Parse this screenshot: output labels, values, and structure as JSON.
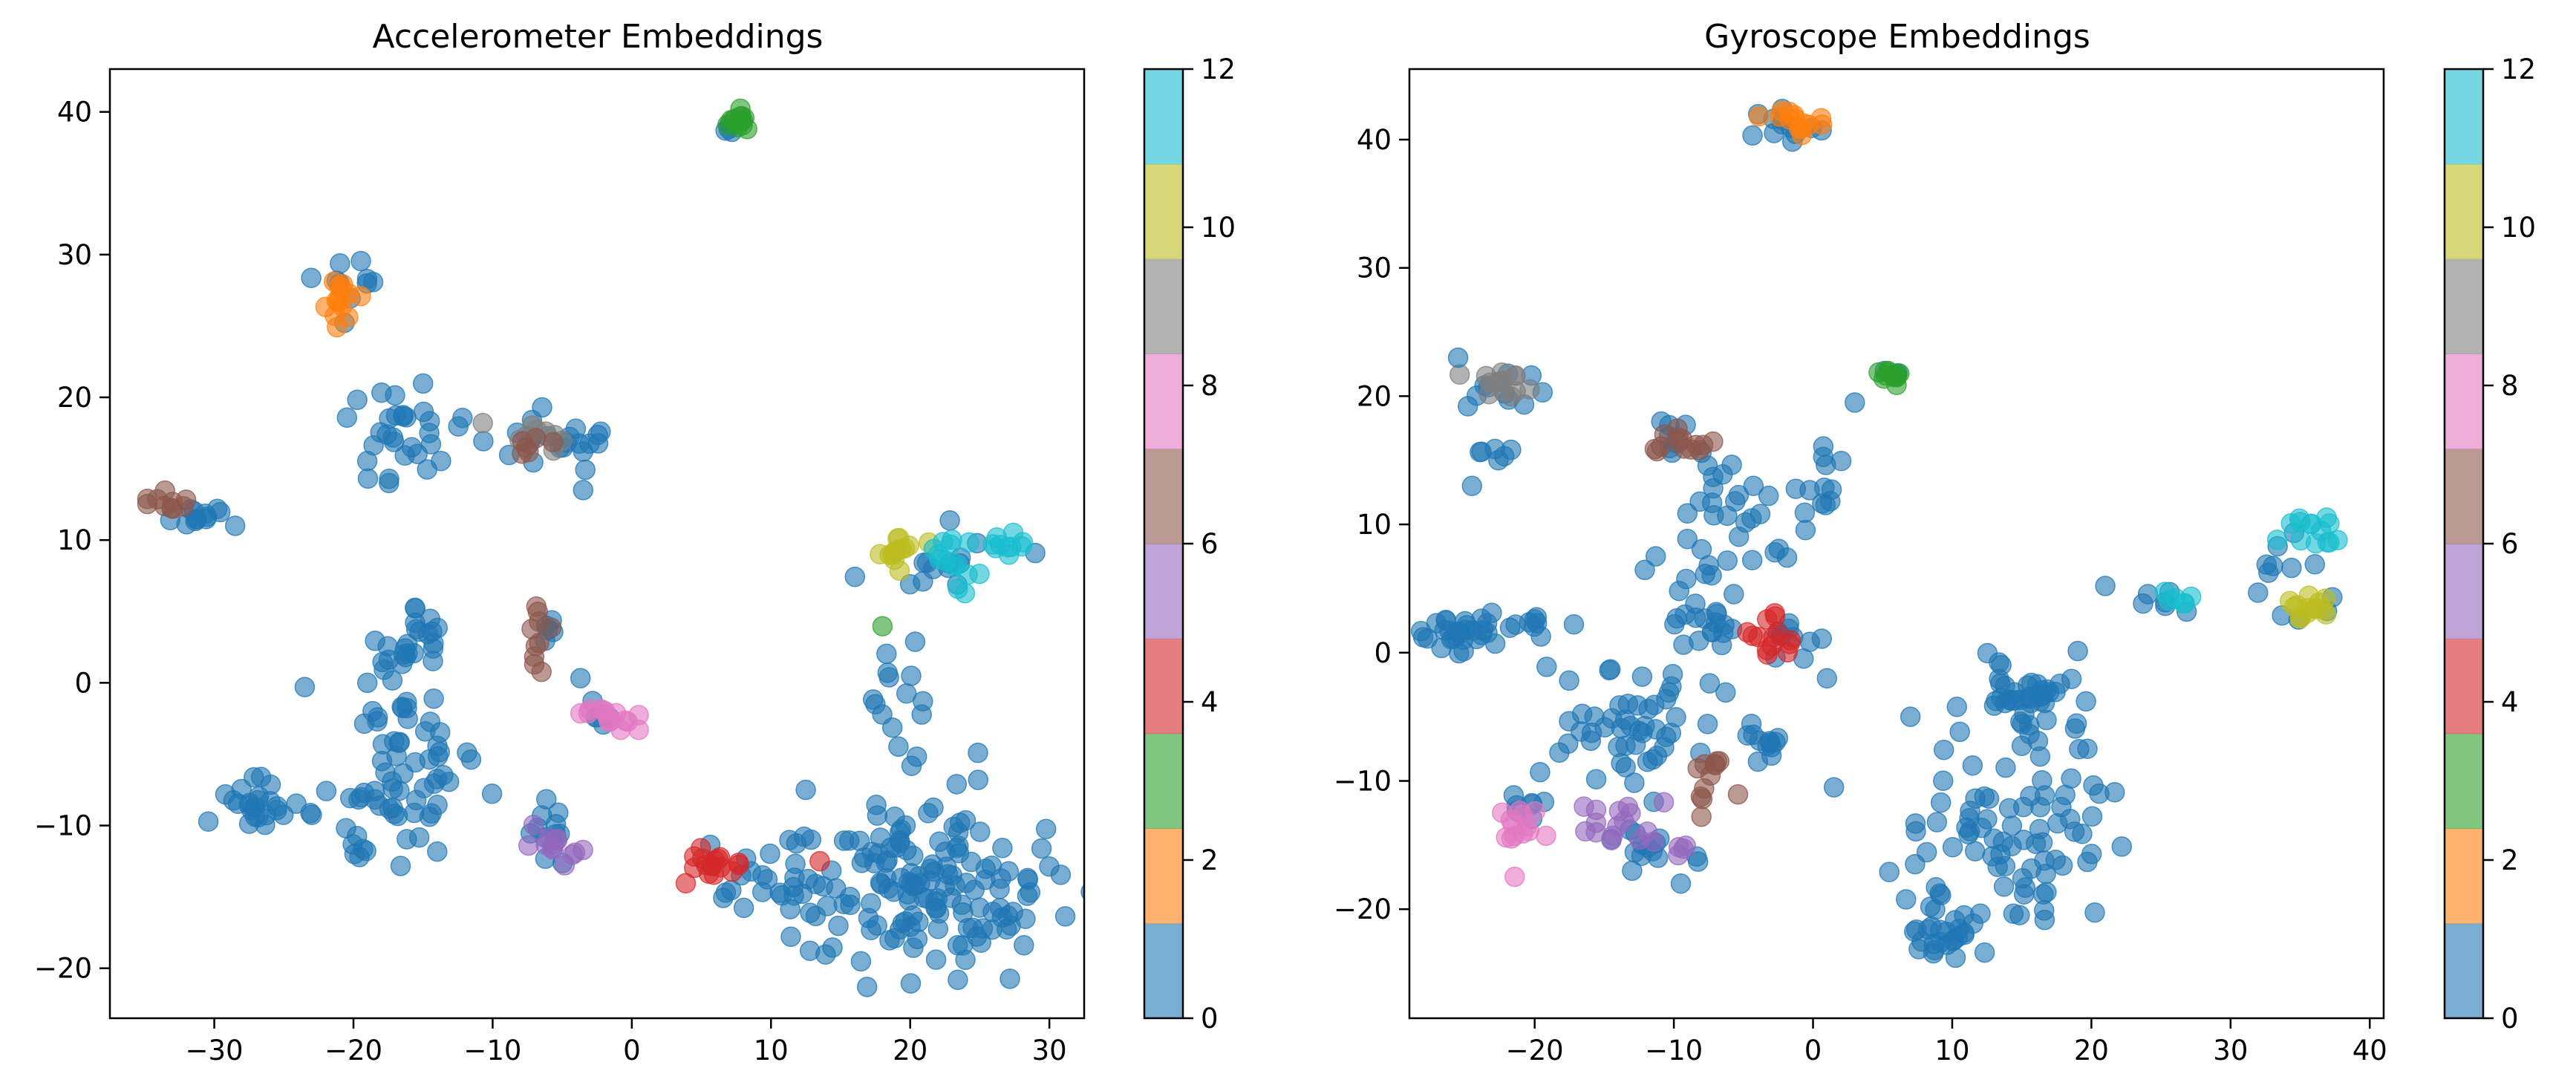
{
  "chart_data": [
    {
      "type": "scatter",
      "title": "Accelerometer Embeddings",
      "xlabel": "",
      "ylabel": "",
      "xlim": [
        -37.5,
        32.5
      ],
      "ylim": [
        -23.5,
        43
      ],
      "xticks": [
        "−30",
        "−20",
        "−10",
        "0",
        "10",
        "20",
        "30"
      ],
      "yticks": [
        "−20",
        "−10",
        "0",
        "10",
        "20",
        "30",
        "40"
      ],
      "grid": false,
      "colorbar": {
        "min": 0,
        "max": 12,
        "ticks": [
          "0",
          "2",
          "4",
          "6",
          "8",
          "10",
          "12"
        ],
        "colors": [
          "#1f77b4",
          "#ff7f0e",
          "#2ca02c",
          "#d62728",
          "#9467bd",
          "#8c564b",
          "#e377c2",
          "#7f7f7f",
          "#bcbd22",
          "#17becf"
        ]
      },
      "clusters": [
        {
          "label": 2,
          "color": "#2ca02c",
          "cx": 7.7,
          "cy": 39.2,
          "sx": 0.5,
          "sy": 0.4,
          "n": 14
        },
        {
          "label": 0,
          "color": "#1f77b4",
          "cx": 7.0,
          "cy": 38.6,
          "sx": 0.4,
          "sy": 0.4,
          "n": 4
        },
        {
          "label": 1,
          "color": "#ff7f0e",
          "cx": -21.0,
          "cy": 27.0,
          "sx": 0.8,
          "sy": 1.1,
          "n": 14
        },
        {
          "label": 0,
          "color": "#1f77b4",
          "cx": -20.5,
          "cy": 27.5,
          "sx": 1.7,
          "sy": 1.4,
          "n": 10
        },
        {
          "label": 5,
          "color": "#8c564b",
          "cx": -33.0,
          "cy": 12.4,
          "sx": 0.9,
          "sy": 0.5,
          "n": 10
        },
        {
          "label": 0,
          "color": "#1f77b4",
          "cx": -31.5,
          "cy": 11.4,
          "sx": 1.7,
          "sy": 0.4,
          "n": 12
        },
        {
          "label": 0,
          "color": "#1f77b4",
          "cx": -16.5,
          "cy": 17.0,
          "sx": 2.0,
          "sy": 1.8,
          "n": 30
        },
        {
          "label": 7,
          "color": "#7f7f7f",
          "cx": -7.0,
          "cy": 17.0,
          "sx": 1.2,
          "sy": 0.7,
          "n": 10
        },
        {
          "label": 5,
          "color": "#8c564b",
          "cx": -7.5,
          "cy": 16.8,
          "sx": 0.8,
          "sy": 0.5,
          "n": 6
        },
        {
          "label": 0,
          "color": "#1f77b4",
          "cx": -6.5,
          "cy": 16.8,
          "sx": 2.0,
          "sy": 1.3,
          "n": 20
        },
        {
          "label": 8,
          "color": "#bcbd22",
          "cx": 19.5,
          "cy": 9.0,
          "sx": 0.8,
          "sy": 0.8,
          "n": 14
        },
        {
          "label": 9,
          "color": "#17becf",
          "cx": 23.5,
          "cy": 8.5,
          "sx": 1.5,
          "sy": 1.2,
          "n": 14
        },
        {
          "label": 9,
          "color": "#17becf",
          "cx": 27.0,
          "cy": 9.6,
          "sx": 0.9,
          "sy": 0.5,
          "n": 10
        },
        {
          "label": 0,
          "color": "#1f77b4",
          "cx": 23.0,
          "cy": 8.0,
          "sx": 3.0,
          "sy": 1.4,
          "n": 14
        },
        {
          "label": 0,
          "color": "#1f77b4",
          "cx": 19.0,
          "cy": 0.5,
          "sx": 1.2,
          "sy": 2.5,
          "n": 12
        },
        {
          "label": 2,
          "color": "#2ca02c",
          "cx": 18.0,
          "cy": 4.0,
          "sx": 0.1,
          "sy": 0.1,
          "n": 1
        },
        {
          "label": 5,
          "color": "#8c564b",
          "cx": -6.5,
          "cy": 3.0,
          "sx": 0.5,
          "sy": 1.4,
          "n": 10
        },
        {
          "label": 0,
          "color": "#1f77b4",
          "cx": -6.0,
          "cy": 3.0,
          "sx": 0.8,
          "sy": 1.4,
          "n": 6
        },
        {
          "label": 6,
          "color": "#e377c2",
          "cx": -1.8,
          "cy": -2.2,
          "sx": 0.9,
          "sy": 0.6,
          "n": 14
        },
        {
          "label": 0,
          "color": "#1f77b4",
          "cx": -2.2,
          "cy": -2.0,
          "sx": 0.9,
          "sy": 0.6,
          "n": 6
        },
        {
          "label": 0,
          "color": "#1f77b4",
          "cx": -16.0,
          "cy": 3.0,
          "sx": 1.4,
          "sy": 1.6,
          "n": 25
        },
        {
          "label": 0,
          "color": "#1f77b4",
          "cx": -16.5,
          "cy": -6.5,
          "sx": 2.5,
          "sy": 2.5,
          "n": 60
        },
        {
          "label": 0,
          "color": "#1f77b4",
          "cx": -27.0,
          "cy": -8.5,
          "sx": 1.5,
          "sy": 1.0,
          "n": 25
        },
        {
          "label": 0,
          "color": "#1f77b4",
          "cx": -19.5,
          "cy": -11.5,
          "sx": 0.5,
          "sy": 0.5,
          "n": 6
        },
        {
          "label": 4,
          "color": "#9467bd",
          "cx": -5.5,
          "cy": -12.0,
          "sx": 0.7,
          "sy": 1.0,
          "n": 12
        },
        {
          "label": 0,
          "color": "#1f77b4",
          "cx": -6.0,
          "cy": -10.5,
          "sx": 0.8,
          "sy": 1.4,
          "n": 12
        },
        {
          "label": 3,
          "color": "#d62728",
          "cx": 6.0,
          "cy": -13.0,
          "sx": 1.3,
          "sy": 1.0,
          "n": 16
        },
        {
          "label": 0,
          "color": "#1f77b4",
          "cx": 21.0,
          "cy": -14.0,
          "sx": 4.5,
          "sy": 3.0,
          "n": 150
        },
        {
          "label": 0,
          "color": "#1f77b4",
          "cx": 9.5,
          "cy": -13.5,
          "sx": 2.5,
          "sy": 1.5,
          "n": 25
        }
      ],
      "singles": [
        {
          "label": 0,
          "color": "#1f77b4",
          "x": -23.5,
          "y": -0.3
        },
        {
          "label": 0,
          "color": "#1f77b4",
          "x": -19.0,
          "y": 0.0
        },
        {
          "label": 0,
          "color": "#1f77b4",
          "x": -28.5,
          "y": 11.0
        },
        {
          "label": 0,
          "color": "#1f77b4",
          "x": -3.5,
          "y": 13.5
        },
        {
          "label": 0,
          "color": "#1f77b4",
          "x": -3.5,
          "y": 16.2
        },
        {
          "label": 6,
          "color": "#e377c2",
          "x": 0.5,
          "y": -3.3
        },
        {
          "label": 3,
          "color": "#d62728",
          "x": 13.5,
          "y": -12.5
        },
        {
          "label": 0,
          "color": "#1f77b4",
          "x": 12.5,
          "y": -7.5
        },
        {
          "label": 0,
          "color": "#1f77b4",
          "x": 17.5,
          "y": -1.5
        }
      ]
    },
    {
      "type": "scatter",
      "title": "Gyroscope Embeddings",
      "xlabel": "",
      "ylabel": "",
      "xlim": [
        -29,
        41
      ],
      "ylim": [
        -28.5,
        45.5
      ],
      "xticks": [
        "−20",
        "−10",
        "0",
        "10",
        "20",
        "30",
        "40"
      ],
      "yticks": [
        "−20",
        "−10",
        "0",
        "10",
        "20",
        "30",
        "40"
      ],
      "grid": false,
      "colorbar": {
        "min": 0,
        "max": 12,
        "ticks": [
          "0",
          "2",
          "4",
          "6",
          "8",
          "10",
          "12"
        ],
        "colors": [
          "#1f77b4",
          "#ff7f0e",
          "#2ca02c",
          "#d62728",
          "#9467bd",
          "#8c564b",
          "#e377c2",
          "#7f7f7f",
          "#bcbd22",
          "#17becf"
        ]
      },
      "clusters": [
        {
          "label": 1,
          "color": "#ff7f0e",
          "cx": -1.0,
          "cy": 41.3,
          "sx": 0.9,
          "sy": 0.5,
          "n": 14
        },
        {
          "label": 0,
          "color": "#1f77b4",
          "cx": -2.0,
          "cy": 41.0,
          "sx": 1.6,
          "sy": 0.7,
          "n": 12
        },
        {
          "label": 2,
          "color": "#2ca02c",
          "cx": 5.8,
          "cy": 21.5,
          "sx": 0.4,
          "sy": 0.4,
          "n": 12
        },
        {
          "label": 0,
          "color": "#1f77b4",
          "cx": 5.5,
          "cy": 21.5,
          "sx": 0.4,
          "sy": 0.4,
          "n": 3
        },
        {
          "label": 7,
          "color": "#7f7f7f",
          "cx": -22.5,
          "cy": 20.8,
          "sx": 1.0,
          "sy": 0.7,
          "n": 14
        },
        {
          "label": 0,
          "color": "#1f77b4",
          "cx": -22.5,
          "cy": 20.5,
          "sx": 1.6,
          "sy": 1.0,
          "n": 10
        },
        {
          "label": 0,
          "color": "#1f77b4",
          "cx": -22.5,
          "cy": 15.5,
          "sx": 1.0,
          "sy": 0.4,
          "n": 6
        },
        {
          "label": 5,
          "color": "#8c564b",
          "cx": -9.5,
          "cy": 16.5,
          "sx": 1.4,
          "sy": 0.5,
          "n": 14
        },
        {
          "label": 0,
          "color": "#1f77b4",
          "cx": -10.0,
          "cy": 16.8,
          "sx": 1.0,
          "sy": 0.6,
          "n": 6
        },
        {
          "label": 0,
          "color": "#1f77b4",
          "cx": -5.0,
          "cy": 12.0,
          "sx": 3.0,
          "sy": 3.0,
          "n": 30
        },
        {
          "label": 0,
          "color": "#1f77b4",
          "cx": 1.0,
          "cy": 13.5,
          "sx": 0.9,
          "sy": 1.5,
          "n": 10
        },
        {
          "label": 0,
          "color": "#1f77b4",
          "cx": -25.5,
          "cy": 1.5,
          "sx": 1.3,
          "sy": 0.8,
          "n": 30
        },
        {
          "label": 0,
          "color": "#1f77b4",
          "cx": -20.0,
          "cy": 2.0,
          "sx": 1.4,
          "sy": 0.6,
          "n": 8
        },
        {
          "label": 3,
          "color": "#d62728",
          "cx": -2.5,
          "cy": 1.5,
          "sx": 1.0,
          "sy": 0.9,
          "n": 14
        },
        {
          "label": 0,
          "color": "#1f77b4",
          "cx": -8.0,
          "cy": 3.0,
          "sx": 1.4,
          "sy": 1.8,
          "n": 25
        },
        {
          "label": 0,
          "color": "#1f77b4",
          "cx": -1.5,
          "cy": 0.5,
          "sx": 1.3,
          "sy": 1.3,
          "n": 10
        },
        {
          "label": 0,
          "color": "#1f77b4",
          "cx": -12.0,
          "cy": -5.0,
          "sx": 3.5,
          "sy": 2.5,
          "n": 50
        },
        {
          "label": 0,
          "color": "#1f77b4",
          "cx": -4.0,
          "cy": -7.5,
          "sx": 1.0,
          "sy": 1.2,
          "n": 12
        },
        {
          "label": 5,
          "color": "#8c564b",
          "cx": -7.5,
          "cy": -10.0,
          "sx": 0.6,
          "sy": 1.8,
          "n": 12
        },
        {
          "label": 6,
          "color": "#e377c2",
          "cx": -21.0,
          "cy": -13.5,
          "sx": 0.8,
          "sy": 1.2,
          "n": 14
        },
        {
          "label": 0,
          "color": "#1f77b4",
          "cx": -20.5,
          "cy": -12.5,
          "sx": 0.8,
          "sy": 1.8,
          "n": 8
        },
        {
          "label": 4,
          "color": "#9467bd",
          "cx": -14.0,
          "cy": -13.0,
          "sx": 1.5,
          "sy": 1.0,
          "n": 16
        },
        {
          "label": 0,
          "color": "#1f77b4",
          "cx": -11.0,
          "cy": -15.0,
          "sx": 1.5,
          "sy": 1.2,
          "n": 14
        },
        {
          "label": 4,
          "color": "#9467bd",
          "cx": -10.0,
          "cy": -15.0,
          "sx": 0.8,
          "sy": 0.6,
          "n": 4
        },
        {
          "label": 0,
          "color": "#1f77b4",
          "cx": 15.0,
          "cy": -3.0,
          "sx": 1.9,
          "sy": 2.0,
          "n": 45
        },
        {
          "label": 0,
          "color": "#1f77b4",
          "cx": 15.0,
          "cy": -15.0,
          "sx": 3.5,
          "sy": 3.5,
          "n": 80
        },
        {
          "label": 0,
          "color": "#1f77b4",
          "cx": 10.0,
          "cy": -22.0,
          "sx": 1.5,
          "sy": 1.5,
          "n": 25
        },
        {
          "label": 9,
          "color": "#17becf",
          "cx": 35.5,
          "cy": 9.5,
          "sx": 1.0,
          "sy": 0.8,
          "n": 14
        },
        {
          "label": 8,
          "color": "#bcbd22",
          "cx": 35.0,
          "cy": 3.5,
          "sx": 1.0,
          "sy": 0.5,
          "n": 14
        },
        {
          "label": 0,
          "color": "#1f77b4",
          "cx": 34.0,
          "cy": 5.5,
          "sx": 1.8,
          "sy": 2.0,
          "n": 12
        },
        {
          "label": 9,
          "color": "#17becf",
          "cx": 26.0,
          "cy": 4.0,
          "sx": 0.7,
          "sy": 0.4,
          "n": 6
        },
        {
          "label": 0,
          "color": "#1f77b4",
          "cx": 25.0,
          "cy": 4.0,
          "sx": 1.3,
          "sy": 0.5,
          "n": 6
        }
      ],
      "singles": [
        {
          "label": 0,
          "color": "#1f77b4",
          "x": -24.5,
          "y": 13.0
        },
        {
          "label": 0,
          "color": "#1f77b4",
          "x": -25.5,
          "y": 23.0
        },
        {
          "label": 0,
          "color": "#1f77b4",
          "x": 21.0,
          "y": 5.2
        },
        {
          "label": 0,
          "color": "#1f77b4",
          "x": 3.0,
          "y": 19.5
        },
        {
          "label": 0,
          "color": "#1f77b4",
          "x": 1.0,
          "y": -2.0
        },
        {
          "label": 0,
          "color": "#1f77b4",
          "x": 1.5,
          "y": -10.5
        },
        {
          "label": 0,
          "color": "#1f77b4",
          "x": -13.0,
          "y": -17.0
        },
        {
          "label": 0,
          "color": "#1f77b4",
          "x": -9.5,
          "y": -18.0
        },
        {
          "label": 0,
          "color": "#1f77b4",
          "x": 7.0,
          "y": -5.0
        }
      ]
    }
  ]
}
